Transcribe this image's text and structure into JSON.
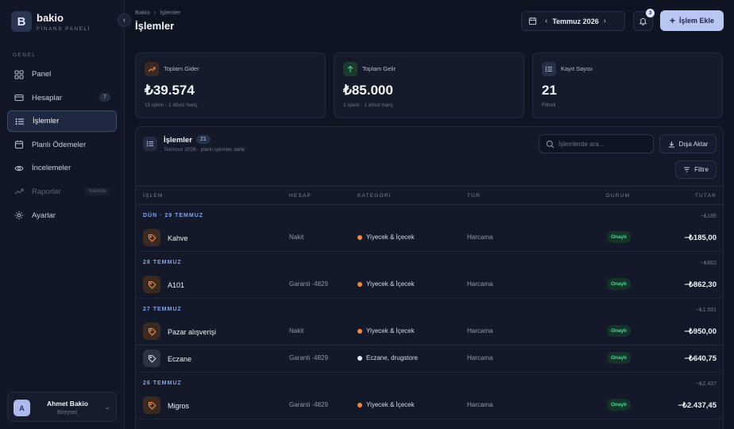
{
  "brand": {
    "logo_letter": "B",
    "name": "bakio",
    "subtitle": "FİNANS PANELİ"
  },
  "sidebar": {
    "section_label": "GENEL",
    "items": [
      {
        "label": "Panel",
        "icon": "grid-icon",
        "badge": ""
      },
      {
        "label": "Hesaplar",
        "icon": "card-icon",
        "badge": "7"
      },
      {
        "label": "İşlemler",
        "icon": "list-icon",
        "badge": "",
        "active": true
      },
      {
        "label": "Planlı Ödemeler",
        "icon": "calendar-icon",
        "badge": ""
      },
      {
        "label": "İncelemeler",
        "icon": "eye-icon",
        "badge": ""
      },
      {
        "label": "Raporlar",
        "icon": "trend-icon",
        "tag": "Yakında",
        "disabled": true
      },
      {
        "label": "Ayarlar",
        "icon": "gear-icon",
        "badge": ""
      }
    ],
    "user": {
      "initial": "A",
      "name": "Ahmet Bakio",
      "role": "Bireysel"
    }
  },
  "header": {
    "breadcrumb": [
      "Bakio",
      "İşlemler"
    ],
    "title": "İşlemler",
    "month": "Temmuz 2026",
    "notifications": "3",
    "add_label": "İşlem Ekle"
  },
  "stats": [
    {
      "label": "Toplam Gider",
      "value": "₺39.574",
      "sub": "15 işlem · 1 döviz hariç",
      "icon": "trend-up-icon",
      "accent": "#f08a4b"
    },
    {
      "label": "Toplam Gelir",
      "value": "₺85.000",
      "sub": "1 işlem · 1 döviz hariç",
      "icon": "arrow-up-icon",
      "accent": "#45d08f"
    },
    {
      "label": "Kayıt Sayısı",
      "value": "21",
      "sub": "Filtreli",
      "icon": "list-icon",
      "accent": "#aeb8d6"
    }
  ],
  "panel": {
    "title": "İşlemler",
    "count": "21",
    "subtitle": "Temmuz 2026 · planlı işlemler dahil",
    "search_placeholder": "İşlemlerde ara...",
    "export_label": "Dışa Aktar",
    "filter_label": "Filtre",
    "columns": [
      "İŞLEM",
      "HESAP",
      "KATEGORİ",
      "TÜR",
      "DURUM",
      "TUTAR"
    ]
  },
  "groups": [
    {
      "date": "DÜN · 29 TEMMUZ",
      "total": "−₺185",
      "rows": [
        {
          "name": "Kahve",
          "account": "Nakit",
          "category": "Yiyecek & İçecek",
          "cat_color": "#f08a3c",
          "type": "Harcama",
          "status": "Onaylı",
          "amount": "−₺185,00",
          "icon_tone": "orange"
        }
      ]
    },
    {
      "date": "28 TEMMUZ",
      "total": "−₺862",
      "rows": [
        {
          "name": "A101",
          "account": "Garanti ·4829",
          "category": "Yiyecek & İçecek",
          "cat_color": "#f08a3c",
          "type": "Harcama",
          "status": "Onaylı",
          "amount": "−₺862,30",
          "icon_tone": "orange"
        }
      ]
    },
    {
      "date": "27 TEMMUZ",
      "total": "−₺1.591",
      "rows": [
        {
          "name": "Pazar alışverişi",
          "account": "Nakit",
          "category": "Yiyecek & İçecek",
          "cat_color": "#f08a3c",
          "type": "Harcama",
          "status": "Onaylı",
          "amount": "−₺950,00",
          "icon_tone": "orange"
        },
        {
          "name": "Eczane",
          "account": "Garanti ·4829",
          "category": "Eczane, drugstore",
          "cat_color": "#e6e9f5",
          "type": "Harcama",
          "status": "Onaylı",
          "amount": "−₺640,75",
          "icon_tone": "grey"
        }
      ]
    },
    {
      "date": "26 TEMMUZ",
      "total": "−₺2.437",
      "rows": [
        {
          "name": "Migros",
          "account": "Garanti ·4829",
          "category": "Yiyecek & İçecek",
          "cat_color": "#f08a3c",
          "type": "Harcama",
          "status": "Onaylı",
          "amount": "−₺2.437,45",
          "icon_tone": "orange"
        }
      ]
    }
  ]
}
